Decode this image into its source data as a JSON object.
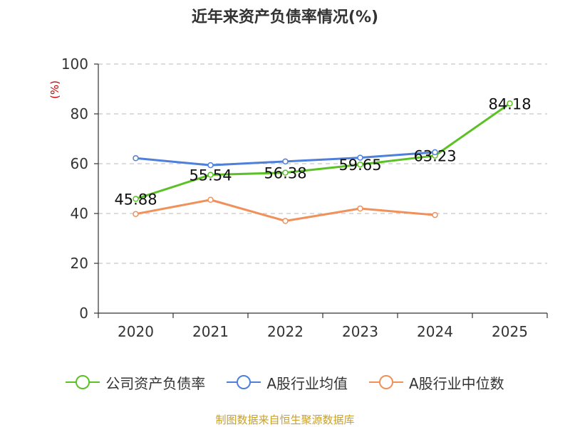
{
  "chart_data": {
    "type": "line",
    "title": "近年来资产负债率情况(%)",
    "ylabel": "(%)",
    "xlabel": "",
    "categories": [
      "2020",
      "2021",
      "2022",
      "2023",
      "2024",
      "2025"
    ],
    "ylim": [
      0,
      100
    ],
    "yticks": [
      0,
      20,
      40,
      60,
      80,
      100
    ],
    "grid": true,
    "legend_position": "bottom",
    "series": [
      {
        "name": "公司资产负债率",
        "color": "#5cc125",
        "show_labels": true,
        "values": [
          45.88,
          55.54,
          56.38,
          59.65,
          63.23,
          84.18
        ],
        "labels": [
          "45.88",
          "55.54",
          "56.38",
          "59.65",
          "63.23",
          "84.18"
        ]
      },
      {
        "name": "A股行业均值",
        "color": "#4e7fd9",
        "show_labels": false,
        "values": [
          62.2,
          59.4,
          60.9,
          62.4,
          64.6,
          null
        ]
      },
      {
        "name": "A股行业中位数",
        "color": "#f0905a",
        "show_labels": false,
        "values": [
          39.8,
          45.5,
          37.0,
          42.0,
          39.4,
          null
        ]
      }
    ]
  },
  "source": "制图数据来自恒生聚源数据库"
}
